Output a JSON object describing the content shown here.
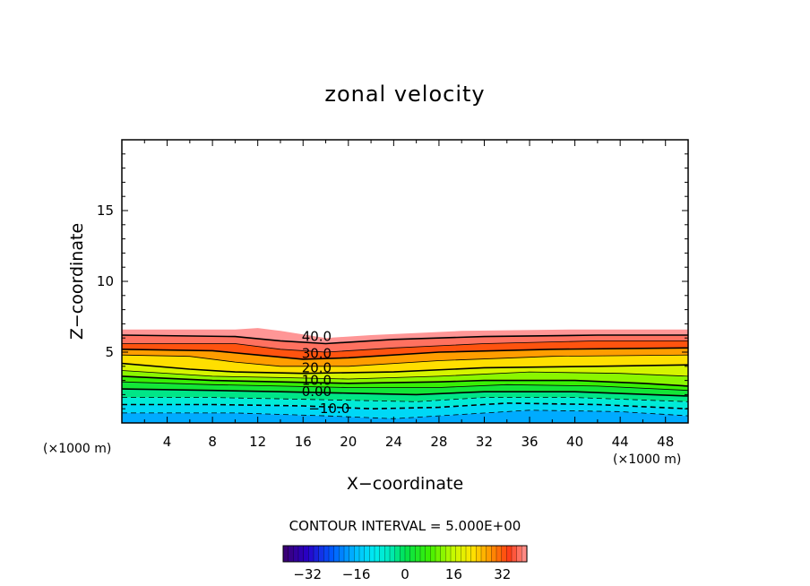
{
  "chart_data": {
    "type": "heatmap",
    "title": "zonal velocity",
    "xlabel": "X−coordinate",
    "ylabel": "Z−coordinate",
    "x_unit": "(×1000 m)",
    "y_unit": "(×1000 m)",
    "xlim": [
      0,
      50
    ],
    "ylim": [
      0,
      20
    ],
    "x_ticks": [
      4,
      8,
      12,
      16,
      20,
      24,
      28,
      32,
      36,
      40,
      44,
      48
    ],
    "y_ticks": [
      5,
      10,
      15
    ],
    "x_tick_labels": [
      "4",
      "8",
      "12",
      "16",
      "20",
      "24",
      "28",
      "32",
      "36",
      "40",
      "44",
      "48"
    ],
    "y_tick_labels": [
      "5",
      "10",
      "15"
    ],
    "contour_interval_text": "CONTOUR INTERVAL = 5.000E+00",
    "contour_interval": 5,
    "contour_labels": [
      {
        "text": "40.0",
        "level": 40,
        "x": 17.2,
        "z": 6.1
      },
      {
        "text": "30.0",
        "level": 30,
        "x": 17.2,
        "z": 4.9
      },
      {
        "text": "20.0",
        "level": 20,
        "x": 17.2,
        "z": 3.9
      },
      {
        "text": "10.0",
        "level": 10,
        "x": 17.2,
        "z": 3.0
      },
      {
        "text": "0.00",
        "level": 0,
        "x": 17.2,
        "z": 2.2
      },
      {
        "text": "−10.0",
        "level": -10,
        "x": 18.3,
        "z": 1.0
      }
    ],
    "field_top_z": [
      [
        0,
        6.6
      ],
      [
        10,
        6.6
      ],
      [
        12,
        6.7
      ],
      [
        14,
        6.5
      ],
      [
        18,
        6.0
      ],
      [
        22,
        6.2
      ],
      [
        30,
        6.5
      ],
      [
        40,
        6.6
      ],
      [
        50,
        6.6
      ]
    ],
    "contours": [
      {
        "level": 40,
        "points": [
          [
            0,
            6.2
          ],
          [
            10,
            6.1
          ],
          [
            14,
            5.8
          ],
          [
            18,
            5.6
          ],
          [
            24,
            5.9
          ],
          [
            32,
            6.1
          ],
          [
            42,
            6.2
          ],
          [
            50,
            6.2
          ]
        ]
      },
      {
        "level": 35,
        "points": [
          [
            0,
            5.6
          ],
          [
            10,
            5.6
          ],
          [
            14,
            5.2
          ],
          [
            18,
            5.0
          ],
          [
            24,
            5.3
          ],
          [
            32,
            5.6
          ],
          [
            42,
            5.8
          ],
          [
            50,
            5.8
          ]
        ]
      },
      {
        "level": 30,
        "points": [
          [
            0,
            5.2
          ],
          [
            8,
            5.1
          ],
          [
            12,
            4.8
          ],
          [
            16,
            4.5
          ],
          [
            20,
            4.6
          ],
          [
            28,
            5.0
          ],
          [
            38,
            5.2
          ],
          [
            50,
            5.3
          ]
        ]
      },
      {
        "level": 25,
        "points": [
          [
            0,
            4.8
          ],
          [
            6,
            4.7
          ],
          [
            10,
            4.3
          ],
          [
            14,
            4.0
          ],
          [
            20,
            4.0
          ],
          [
            28,
            4.4
          ],
          [
            38,
            4.7
          ],
          [
            50,
            4.8
          ]
        ]
      },
      {
        "level": 20,
        "points": [
          [
            0,
            4.2
          ],
          [
            6,
            3.8
          ],
          [
            10,
            3.6
          ],
          [
            16,
            3.5
          ],
          [
            24,
            3.6
          ],
          [
            32,
            3.9
          ],
          [
            42,
            4.0
          ],
          [
            50,
            4.1
          ]
        ]
      },
      {
        "level": 15,
        "points": [
          [
            0,
            3.7
          ],
          [
            8,
            3.3
          ],
          [
            14,
            3.2
          ],
          [
            20,
            3.1
          ],
          [
            28,
            3.3
          ],
          [
            36,
            3.6
          ],
          [
            44,
            3.5
          ],
          [
            50,
            3.3
          ]
        ]
      },
      {
        "level": 10,
        "points": [
          [
            0,
            3.3
          ],
          [
            8,
            3.0
          ],
          [
            14,
            2.9
          ],
          [
            20,
            2.8
          ],
          [
            28,
            2.9
          ],
          [
            32,
            3.0
          ],
          [
            40,
            3.0
          ],
          [
            46,
            2.8
          ],
          [
            50,
            2.6
          ]
        ]
      },
      {
        "level": 5,
        "points": [
          [
            0,
            2.9
          ],
          [
            8,
            2.7
          ],
          [
            14,
            2.6
          ],
          [
            20,
            2.5
          ],
          [
            28,
            2.5
          ],
          [
            34,
            2.7
          ],
          [
            42,
            2.6
          ],
          [
            50,
            2.3
          ]
        ]
      },
      {
        "level": 0,
        "points": [
          [
            0,
            2.4
          ],
          [
            8,
            2.3
          ],
          [
            14,
            2.2
          ],
          [
            20,
            2.1
          ],
          [
            26,
            2.0
          ],
          [
            32,
            2.2
          ],
          [
            40,
            2.2
          ],
          [
            50,
            1.9
          ]
        ]
      },
      {
        "level": -5,
        "points": [
          [
            0,
            1.8
          ],
          [
            8,
            1.8
          ],
          [
            14,
            1.7
          ],
          [
            20,
            1.6
          ],
          [
            26,
            1.5
          ],
          [
            32,
            1.8
          ],
          [
            40,
            1.8
          ],
          [
            50,
            1.5
          ]
        ]
      },
      {
        "level": -10,
        "points": [
          [
            0,
            1.3
          ],
          [
            8,
            1.3
          ],
          [
            16,
            1.2
          ],
          [
            22,
            1.0
          ],
          [
            28,
            1.1
          ],
          [
            34,
            1.4
          ],
          [
            42,
            1.3
          ],
          [
            50,
            1.0
          ]
        ]
      },
      {
        "level": -15,
        "points": [
          [
            0,
            0.7
          ],
          [
            10,
            0.7
          ],
          [
            18,
            0.5
          ],
          [
            24,
            0.3
          ],
          [
            30,
            0.6
          ],
          [
            36,
            0.9
          ],
          [
            44,
            0.8
          ],
          [
            50,
            0.5
          ]
        ]
      }
    ],
    "colorbar": {
      "min": -40,
      "max": 40,
      "tick_values": [
        -32,
        -16,
        0,
        16,
        32
      ],
      "tick_labels": [
        "−32",
        "−16",
        "0",
        "16",
        "32"
      ]
    },
    "grid": false
  }
}
